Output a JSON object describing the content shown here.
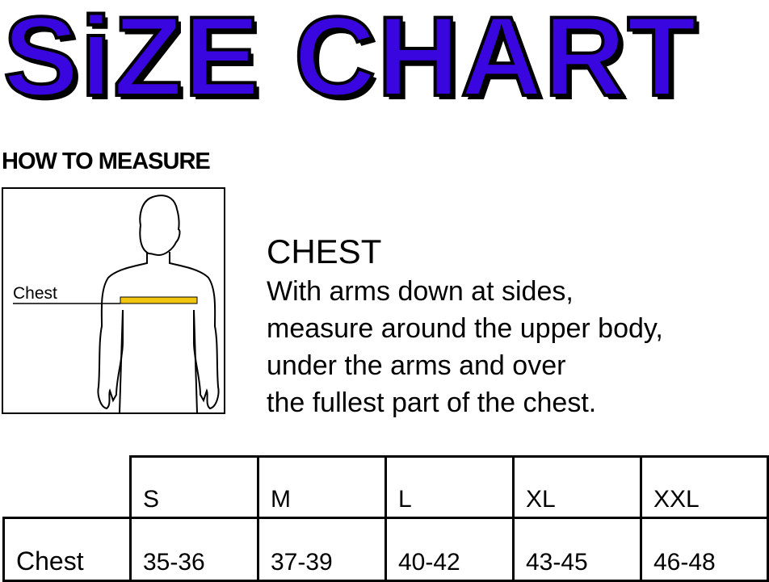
{
  "title": "SiZE CHART",
  "how_to_measure": "HOW TO MEASURE",
  "figure": {
    "label": "Chest",
    "tape_color": "#f2c511"
  },
  "instructions": {
    "heading": "CHEST",
    "lines": [
      "With arms down at sides,",
      "measure around the upper body,",
      "under the arms and over",
      "the fullest part of the chest."
    ]
  },
  "table": {
    "headers": [
      "S",
      "M",
      "L",
      "XL",
      "XXL"
    ],
    "rows": [
      {
        "label": "Chest",
        "values": [
          "35-36",
          "37-39",
          "40-42",
          "43-45",
          "46-48"
        ]
      }
    ]
  },
  "colors": {
    "title": "#3a06e0",
    "outline": "#000000"
  }
}
